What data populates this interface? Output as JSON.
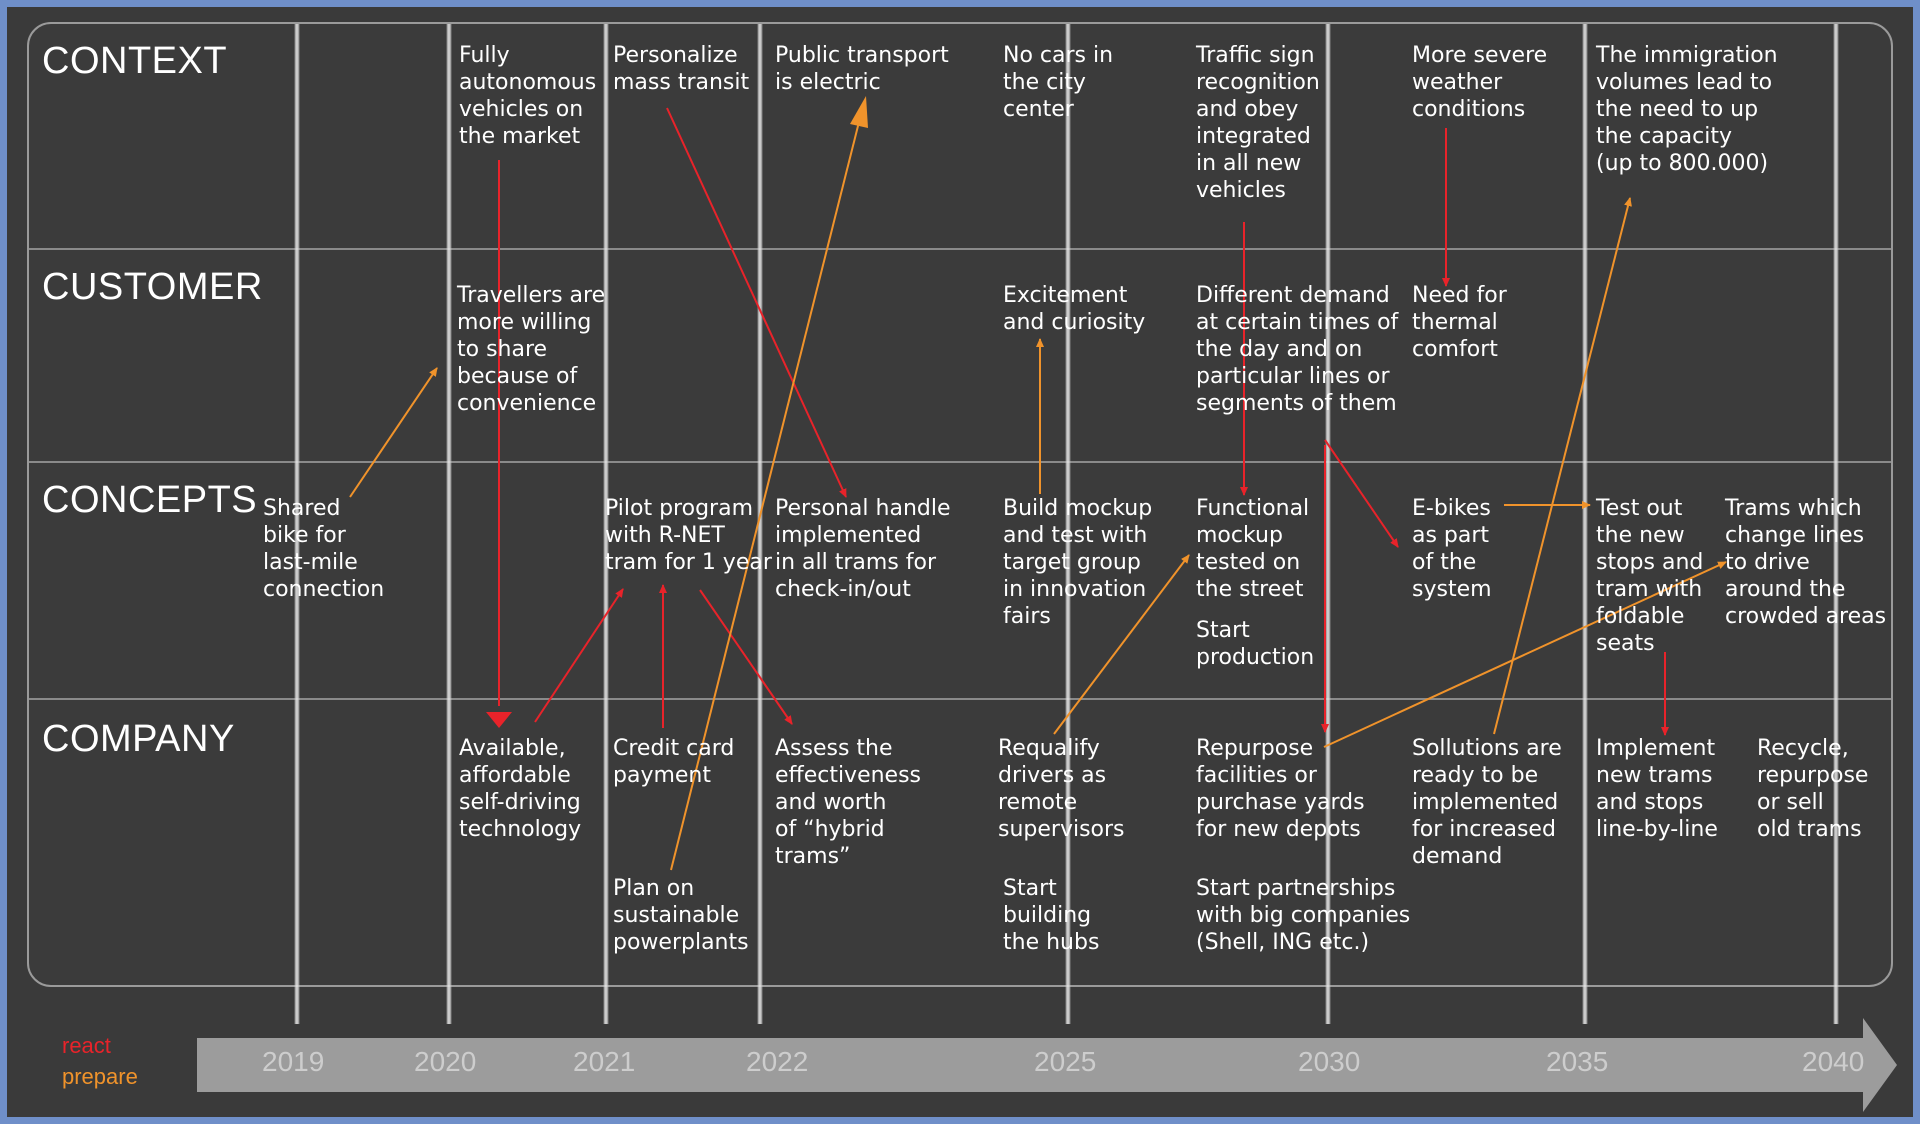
{
  "rows": {
    "context": "CONTEXT",
    "customer": "CUSTOMER",
    "concepts": "CONCEPTS",
    "company": "COMPANY"
  },
  "notes": {
    "context_2020": "Fully\nautonomous\nvehicles on\nthe market",
    "context_2021": "Personalize\nmass transit",
    "context_2022": "Public transport\nis electric",
    "context_2025": "No cars in\nthe city\ncenter",
    "context_2030": "Traffic sign\nrecognition\nand obey\nintegrated\nin all new\nvehicles",
    "context_2030b": "More severe\nweather\nconditions",
    "context_2035": "The immigration\nvolumes lead to\nthe need to up\nthe capacity\n(up to 800.000)",
    "customer_2020": "Travellers are\nmore willing\nto share\nbecause of\nconvenience",
    "customer_2025": "Excitement\nand curiosity",
    "customer_2030": "Different demand\nat certain times of\nthe day and on\nparticular lines or\nsegments of them",
    "customer_2030b": "Need for\nthermal\ncomfort",
    "concepts_2019": "Shared\nbike for\nlast-mile\nconnection",
    "concepts_2021": "Pilot program\nwith R-NET\ntram for 1 year",
    "concepts_2022": "Personal handle\nimplemented\nin all trams for\ncheck-in/out",
    "concepts_2025": "Build mockup\nand test with\ntarget group\nin innovation\nfairs",
    "concepts_2030": "Functional\nmockup\ntested on\nthe street",
    "concepts_2030_start": "Start\nproduction",
    "concepts_2030b": "E-bikes\nas part\nof the\nsystem",
    "concepts_2035": "Test out\nthe new\nstops and\ntram with\nfoldable\nseats",
    "concepts_2035b": "Trams which\nchange lines\nto drive\naround the\ncrowded areas",
    "company_2020": "Available,\naffordable\nself-driving\ntechnology",
    "company_2021": "Credit card\npayment",
    "company_2021b": "Plan on\nsustainable\npowerplants",
    "company_2022": "Assess the\neffectiveness\nand worth\nof “hybrid\ntrams”",
    "company_2025": "Requalify\ndrivers as\nremote\nsupervisors",
    "company_2025b": "Start\nbuilding\nthe hubs",
    "company_2030": "Repurpose\nfacilities or\npurchase yards\nfor new depots",
    "company_2030b": "Start partnerships\nwith big companies\n(Shell, ING etc.)",
    "company_2030c": "Sollutions are\nready to be\nimplemented\nfor increased\ndemand",
    "company_2035": "Implement\nnew trams\nand stops\nline-by-line",
    "company_2035b": "Recycle,\nrepurpose\nor sell\nold trams"
  },
  "timeline": [
    "2019",
    "2020",
    "2021",
    "2022",
    "2025",
    "2030",
    "2035",
    "2040"
  ],
  "legend": {
    "react": "react",
    "prepare": "prepare"
  },
  "colors": {
    "react": "#e8232a",
    "prepare": "#f0932b",
    "text": "#ffffff"
  }
}
